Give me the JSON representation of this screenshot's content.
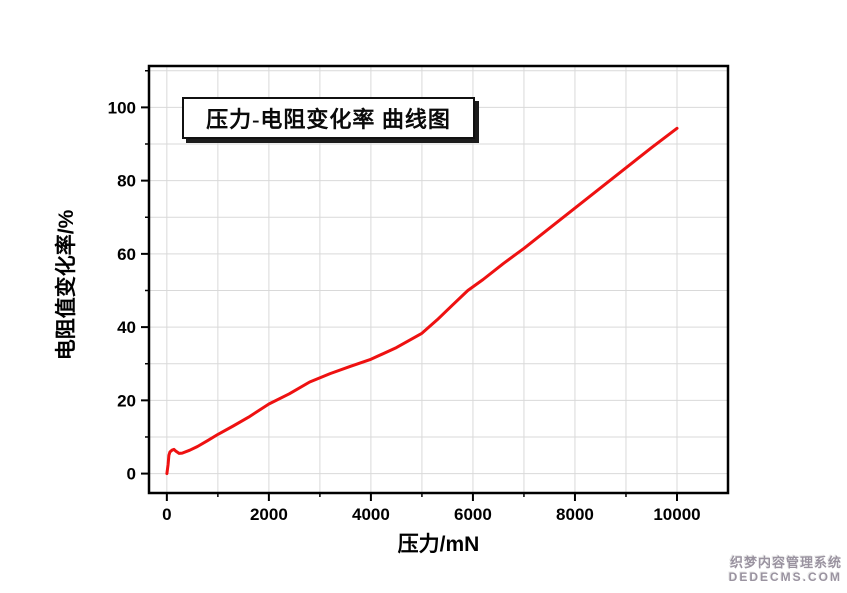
{
  "page": {
    "background": "#ffffff"
  },
  "watermark": {
    "line1": "织梦内容管理系统",
    "line2": "DEDECMS.COM"
  },
  "chart_data": {
    "type": "line",
    "title": "压力-电阻变化率 曲线图",
    "xlabel": "压力/mN",
    "ylabel": "电阻值变化率/%",
    "xlim": [
      -350,
      11000
    ],
    "ylim": [
      -5.3,
      111.3
    ],
    "x_ticks_major": {
      "values": [
        0,
        2000,
        4000,
        6000,
        8000,
        10000
      ],
      "labels": [
        "0",
        "2000",
        "4000",
        "6000",
        "8000",
        "10000"
      ]
    },
    "x_ticks_minor": [
      1000,
      3000,
      5000,
      7000,
      9000
    ],
    "y_ticks_major": {
      "values": [
        0,
        20,
        40,
        60,
        80,
        100
      ],
      "labels": [
        "0",
        "20",
        "40",
        "60",
        "80",
        "100"
      ]
    },
    "y_ticks_minor": [
      10,
      30,
      50,
      70,
      90,
      110
    ],
    "grid": {
      "show": true,
      "color": "#d9d9d9",
      "x_values": [
        0,
        1000,
        2000,
        3000,
        4000,
        5000,
        6000,
        7000,
        8000,
        9000,
        10000
      ],
      "y_values": [
        0,
        10,
        20,
        30,
        40,
        50,
        60,
        70,
        80,
        90,
        100,
        110
      ]
    },
    "frame_color": "#000000",
    "line": {
      "color": "#ee1111",
      "width": 3
    },
    "legend": "none",
    "series": [
      {
        "name": "压力-电阻变化率",
        "x": [
          0,
          25,
          40,
          60,
          100,
          140,
          180,
          240,
          300,
          450,
          600,
          800,
          1000,
          1300,
          1600,
          2000,
          2400,
          2800,
          3200,
          3600,
          4000,
          4500,
          5000,
          5300,
          5600,
          5900,
          6200,
          6600,
          7000,
          7500,
          8000,
          8500,
          9000,
          9500,
          10000
        ],
        "y": [
          0,
          2.5,
          5.0,
          5.9,
          6.4,
          6.6,
          6.1,
          5.5,
          5.6,
          6.4,
          7.4,
          9.0,
          10.7,
          13.0,
          15.4,
          19.0,
          21.8,
          25.0,
          27.3,
          29.3,
          31.2,
          34.4,
          38.3,
          42.0,
          46.0,
          50.0,
          53.0,
          57.4,
          61.5,
          67.0,
          72.5,
          78.0,
          83.5,
          89.0,
          94.3
        ]
      }
    ]
  }
}
